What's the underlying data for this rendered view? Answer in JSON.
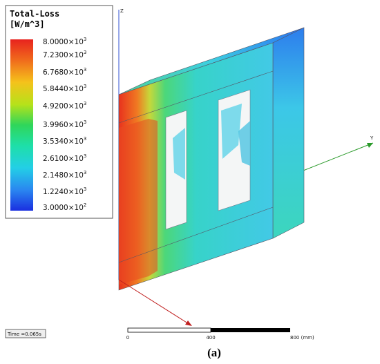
{
  "legend": {
    "title": "Total-Loss",
    "unit": "[W/m^3]",
    "items": [
      {
        "mantissa": "8.0000×10",
        "exponent": "3"
      },
      {
        "mantissa": "7.2300×10",
        "exponent": "3"
      },
      {
        "mantissa": "6.7680×10",
        "exponent": "3"
      },
      {
        "mantissa": "5.8440×10",
        "exponent": "3"
      },
      {
        "mantissa": "4.9200×10",
        "exponent": "3"
      },
      {
        "mantissa": "3.9960×10",
        "exponent": "3"
      },
      {
        "mantissa": "3.5340×10",
        "exponent": "3"
      },
      {
        "mantissa": "2.6100×10",
        "exponent": "3"
      },
      {
        "mantissa": "2.1480×10",
        "exponent": "3"
      },
      {
        "mantissa": "1.2240×10",
        "exponent": "3"
      },
      {
        "mantissa": "3.0000×10",
        "exponent": "2"
      }
    ]
  },
  "axes": {
    "z": "Z",
    "y": "Y"
  },
  "time": "Time =0.065s",
  "scale": {
    "start": "0",
    "middle": "400",
    "end": "800 (mm)"
  },
  "caption": "(a)"
}
